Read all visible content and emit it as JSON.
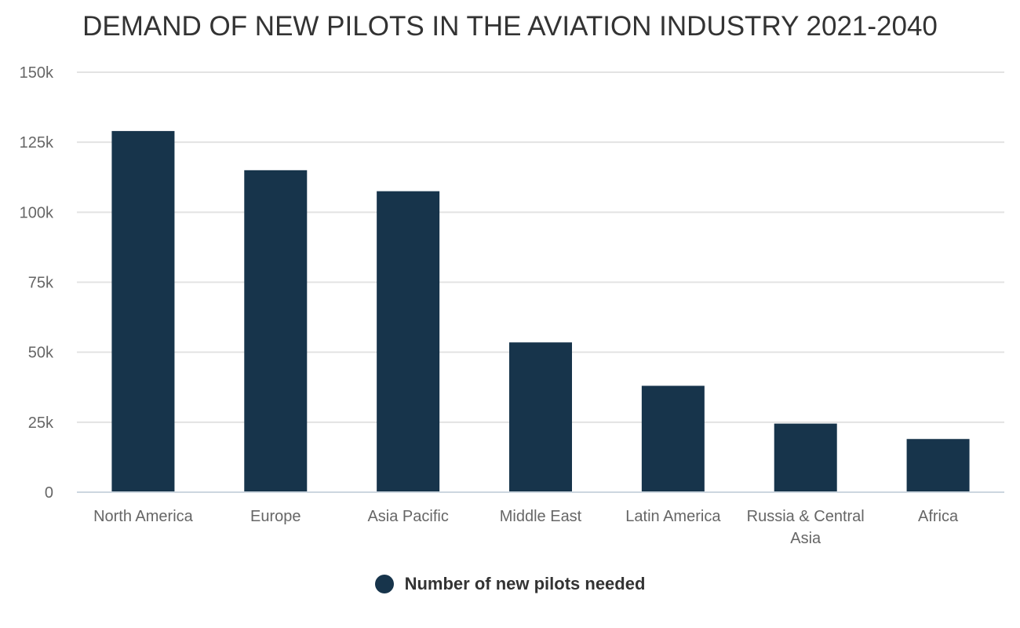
{
  "chart_data": {
    "type": "bar",
    "title": "DEMAND OF NEW PILOTS IN THE AVIATION INDUSTRY 2021-2040",
    "xlabel": "",
    "ylabel": "",
    "categories": [
      "North America",
      "Europe",
      "Asia Pacific",
      "Middle East",
      "Latin America",
      "Russia & Central Asia",
      "Africa"
    ],
    "category_lines": [
      [
        "North America"
      ],
      [
        "Europe"
      ],
      [
        "Asia Pacific"
      ],
      [
        "Middle East"
      ],
      [
        "Latin America"
      ],
      [
        "Russia & Central",
        "Asia"
      ],
      [
        "Africa"
      ]
    ],
    "series": [
      {
        "name": "Number of new pilots needed",
        "values": [
          129000,
          115000,
          107500,
          53500,
          38000,
          24500,
          19000
        ],
        "color": "#17344b"
      }
    ],
    "ylim": [
      0,
      150000
    ],
    "yticks": [
      0,
      25000,
      50000,
      75000,
      100000,
      125000,
      150000
    ],
    "ytick_labels": [
      "0",
      "25k",
      "50k",
      "75k",
      "100k",
      "125k",
      "150k"
    ],
    "grid": true,
    "legend": "bottom-center"
  }
}
